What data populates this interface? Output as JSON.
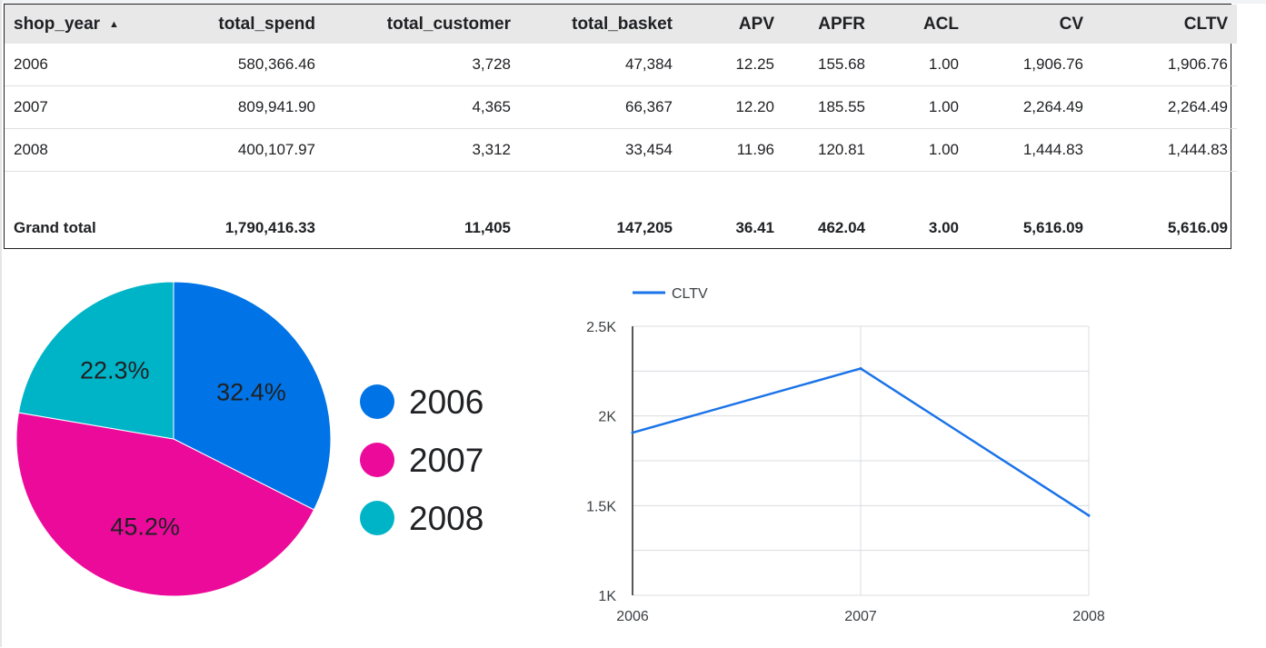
{
  "table": {
    "columns": [
      "shop_year",
      "total_spend",
      "total_customer",
      "total_basket",
      "APV",
      "APFR",
      "ACL",
      "CV",
      "CLTV"
    ],
    "sort_column": "shop_year",
    "sort_direction": "ascending",
    "rows": [
      [
        "2006",
        "580,366.46",
        "3,728",
        "47,384",
        "12.25",
        "155.68",
        "1.00",
        "1,906.76",
        "1,906.76"
      ],
      [
        "2007",
        "809,941.90",
        "4,365",
        "66,367",
        "12.20",
        "185.55",
        "1.00",
        "2,264.49",
        "2,264.49"
      ],
      [
        "2008",
        "400,107.97",
        "3,312",
        "33,454",
        "11.96",
        "120.81",
        "1.00",
        "1,444.83",
        "1,444.83"
      ]
    ],
    "grand_total": [
      "Grand total",
      "1,790,416.33",
      "11,405",
      "147,205",
      "36.41",
      "462.04",
      "3.00",
      "5,616.09",
      "5,616.09"
    ]
  },
  "colors": {
    "blue": "#0073E6",
    "pink": "#EC0A9B",
    "teal": "#00B4C8",
    "line": "#1A73E8"
  },
  "chart_data": [
    {
      "type": "pie",
      "categories": [
        "2006",
        "2007",
        "2008"
      ],
      "values": [
        32.4,
        45.2,
        22.3
      ],
      "labels": [
        "32.4%",
        "45.2%",
        "22.3%"
      ],
      "colors": [
        "#0073E6",
        "#EC0A9B",
        "#00B4C8"
      ],
      "legend": [
        "2006",
        "2007",
        "2008"
      ],
      "legend_position": "right"
    },
    {
      "type": "line",
      "x": [
        "2006",
        "2007",
        "2008"
      ],
      "series": [
        {
          "name": "CLTV",
          "values": [
            1906.76,
            2264.49,
            1444.83
          ],
          "color": "#1A73E8"
        }
      ],
      "ylim": [
        1000,
        2500
      ],
      "yticks": [
        1000,
        1500,
        2000,
        2500
      ],
      "ytick_labels": [
        "1K",
        "1.5K",
        "2K",
        "2.5K"
      ],
      "grid": true,
      "legend_position": "top-left"
    }
  ]
}
